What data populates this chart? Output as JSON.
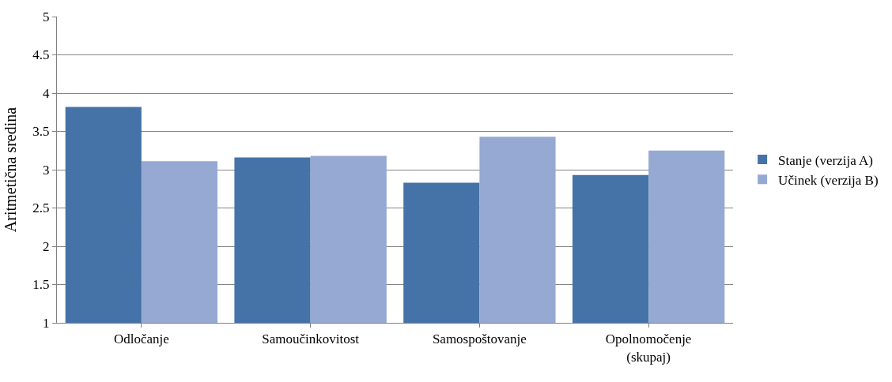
{
  "chart_data": {
    "type": "bar",
    "ylabel": "Aritmetična sredina",
    "categories": [
      "Odločanje",
      "Samoučinkovitost",
      "Samospoštovanje",
      "Opolnomočenje\n(skupaj)"
    ],
    "series": [
      {
        "name": "Stanje (verzija A)",
        "color": "#4572a7",
        "values": [
          3.82,
          3.16,
          2.83,
          2.93
        ]
      },
      {
        "name": "Učinek (verzija B)",
        "color": "#95a9d2",
        "values": [
          3.11,
          3.18,
          3.43,
          3.25
        ]
      }
    ],
    "ylim": [
      1,
      5
    ],
    "yticks": [
      1,
      1.5,
      2,
      2.5,
      3,
      3.5,
      4,
      4.5,
      5
    ],
    "grid": "y",
    "legend": "right"
  }
}
